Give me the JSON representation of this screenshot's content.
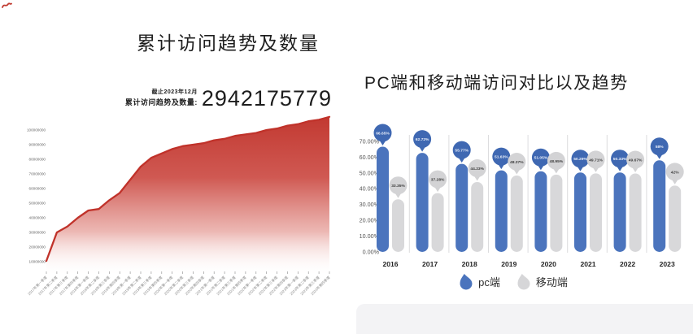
{
  "left_panel": {
    "title": "累计访问趋势及数量",
    "stat": {
      "caption": "截止2023年12月",
      "label": "累计访问趋势及数量:",
      "value": "2942175779"
    }
  },
  "right_panel": {
    "title": "PC端和移动端访问对比以及趋势"
  },
  "chart_data": [
    {
      "type": "area",
      "title": "累计访问趋势及数量",
      "annotation": {
        "caption": "截止2023年12月",
        "label": "累计访问趋势及数量:",
        "value": "2942175779"
      },
      "categories": [
        "2017年第一季度",
        "2017年第二季度",
        "2017年第三季度",
        "2017年第四季度",
        "2018年第一季度",
        "2018年第二季度",
        "2018年第三季度",
        "2018年第四季度",
        "2019年第一季度",
        "2019年第二季度",
        "2019年第三季度",
        "2019年第四季度",
        "2020年第一季度",
        "2020年第二季度",
        "2020年第三季度",
        "2020年第四季度",
        "2021年第一季度",
        "2021年第二季度",
        "2021年第三季度",
        "2021年第四季度",
        "2022年第一季度",
        "2022年第二季度",
        "2022年第三季度",
        "2022年第四季度",
        "2023年第一季度",
        "2023年第二季度",
        "2023年第三季度",
        "2023年第四季度"
      ],
      "values": [
        10500000,
        30000000,
        34000000,
        40000000,
        45000000,
        46000000,
        52000000,
        57000000,
        66000000,
        75000000,
        81000000,
        84000000,
        87000000,
        89000000,
        90000000,
        91000000,
        93000000,
        94000000,
        96000000,
        97000000,
        98000000,
        100000000,
        101000000,
        103000000,
        104000000,
        106000000,
        107000000,
        109000000
      ],
      "yticks": [
        10000000,
        20000000,
        30000000,
        40000000,
        50000000,
        60000000,
        70000000,
        80000000,
        90000000,
        100000000
      ],
      "ylim": [
        0,
        110000000
      ],
      "grid": false,
      "legend_position": "none",
      "line_color": "#c0322a",
      "fill_gradient_top": "#c23931",
      "fill_gradient_bottom": "#ffffff"
    },
    {
      "type": "bar",
      "title": "PC端和移动端访问对比以及趋势",
      "categories": [
        "2016",
        "2017",
        "2018",
        "2019",
        "2020",
        "2021",
        "2022",
        "2023"
      ],
      "series": [
        {
          "name": "pc端",
          "color": "#4b74bd",
          "balloon_color": "#3f68b2",
          "label_color": "#e8eefa",
          "values": [
            66.65,
            62.72,
            55.77,
            51.63,
            51.05,
            50.29,
            50.33,
            58
          ],
          "labels": [
            "66.65%",
            "62.72%",
            "55.77%",
            "51.63%",
            "51.05%",
            "50.29%",
            "50.33%",
            "58%"
          ]
        },
        {
          "name": "移动端",
          "color": "#d8d8da",
          "balloon_color": "#d3d3d5",
          "label_color": "#3f3f3f",
          "values": [
            33.35,
            37.28,
            44.23,
            48.37,
            48.95,
            49.71,
            49.67,
            42
          ],
          "labels": [
            "33.35%",
            "37.28%",
            "44.23%",
            "48.37%",
            "48.95%",
            "49.71%",
            "49.67%",
            "42%"
          ]
        }
      ],
      "yticks": {
        "values": [
          0,
          10,
          20,
          30,
          40,
          50,
          60,
          70
        ],
        "labels": [
          "0.00%",
          "10.00%",
          "20.00%",
          "30.00%",
          "40.00%",
          "50.00%",
          "60.00%",
          "70.00%"
        ]
      },
      "ylim": [
        0,
        78
      ],
      "grid": false,
      "legend_position": "bottom"
    }
  ]
}
